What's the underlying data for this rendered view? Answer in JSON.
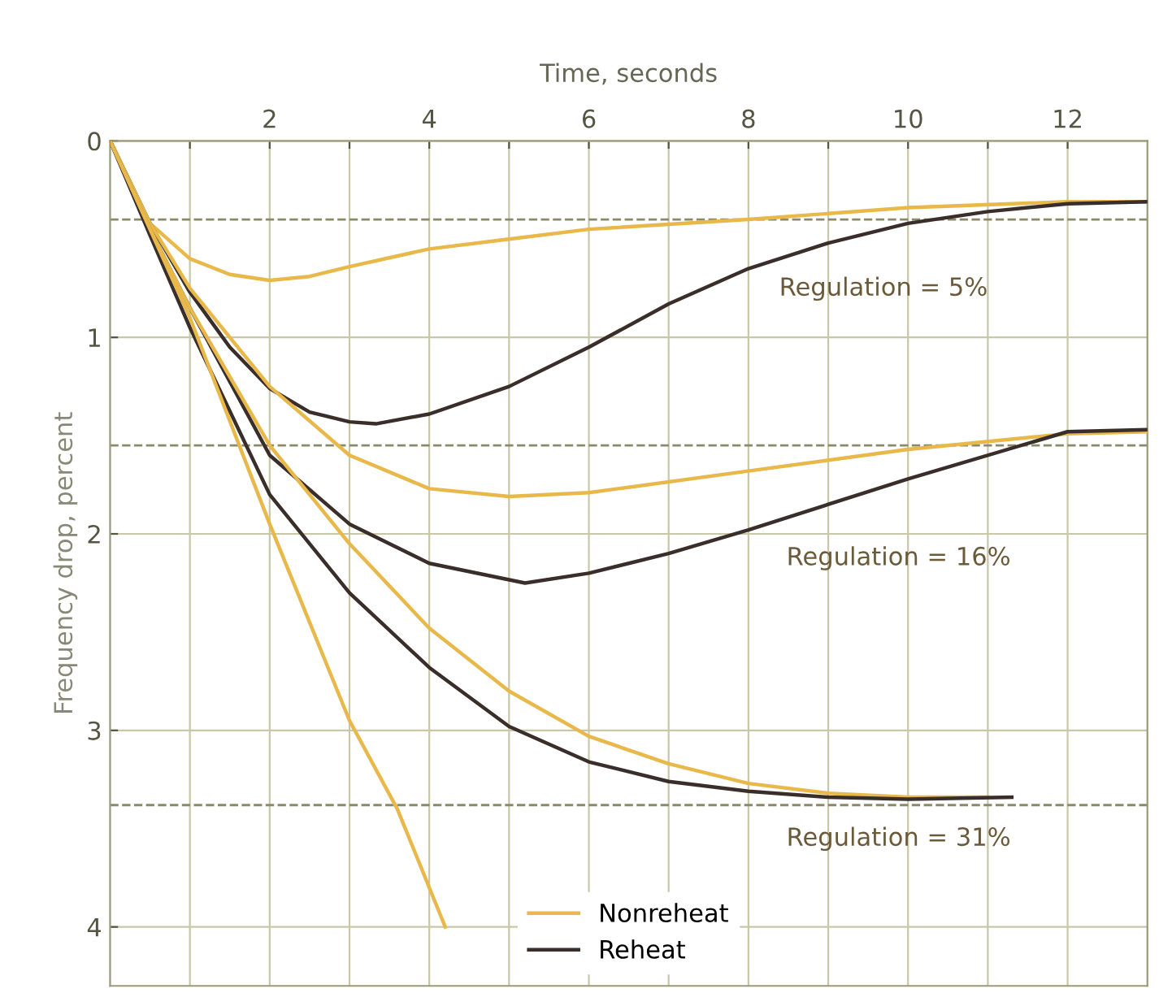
{
  "chart_data": {
    "type": "line",
    "xlabel": "Time, seconds",
    "ylabel": "Frequency drop, percent",
    "xlim": [
      0,
      13
    ],
    "ylim": [
      4.3,
      0
    ],
    "xticks": [
      {
        "value": 1,
        "label": null
      },
      2,
      {
        "value": 3,
        "label": null
      },
      4,
      {
        "value": 5,
        "label": null
      },
      6,
      {
        "value": 7,
        "label": null
      },
      8,
      {
        "value": 9,
        "label": null
      },
      10,
      {
        "value": 11,
        "label": null
      },
      12
    ],
    "yticks": [
      0,
      1,
      2,
      3,
      4
    ],
    "grid": true,
    "legend": "bottom",
    "line_style": "solid",
    "marker": "none",
    "ref_lines": [
      {
        "axis": "y",
        "value": 0.4,
        "line_style": "dashed"
      },
      {
        "axis": "y",
        "value": 1.55,
        "line_style": "dashed"
      },
      {
        "axis": "y",
        "value": 3.38,
        "line_style": "dashed"
      }
    ],
    "annotations": [
      "Regulation = 5%",
      "Regulation = 16%",
      "Regulation = 31%"
    ],
    "series": [
      {
        "name": "Nonreheat",
        "color": "#e8b84a",
        "x": [
          0,
          0.5,
          1,
          1.5,
          2,
          2.5,
          3,
          4,
          5,
          6,
          8,
          10,
          12,
          13
        ],
        "values": [
          0,
          0.42,
          0.6,
          0.68,
          0.71,
          0.69,
          0.64,
          0.55,
          0.5,
          0.45,
          0.4,
          0.34,
          0.31,
          0.31
        ]
      },
      {
        "name": "Reheat",
        "color": "#3a2e2a",
        "x": [
          0,
          0.5,
          1,
          1.5,
          2,
          2.5,
          3,
          3.33,
          4,
          5,
          6,
          7,
          8,
          9,
          10,
          11,
          12,
          13
        ],
        "values": [
          0,
          0.42,
          0.77,
          1.05,
          1.26,
          1.38,
          1.43,
          1.44,
          1.39,
          1.25,
          1.05,
          0.83,
          0.65,
          0.52,
          0.42,
          0.36,
          0.32,
          0.31
        ]
      },
      {
        "color": "#e8b84a",
        "x": [
          0,
          0.5,
          1,
          2,
          3,
          4,
          5,
          6,
          8,
          10,
          12,
          13
        ],
        "values": [
          0,
          0.42,
          0.75,
          1.25,
          1.6,
          1.77,
          1.81,
          1.79,
          1.68,
          1.57,
          1.49,
          1.48
        ]
      },
      {
        "color": "#3a2e2a",
        "x": [
          0,
          0.5,
          1,
          2,
          3,
          4,
          5.2,
          6,
          7,
          8,
          10,
          12,
          13
        ],
        "values": [
          0,
          0.45,
          0.85,
          1.6,
          1.95,
          2.15,
          2.25,
          2.2,
          2.1,
          1.98,
          1.72,
          1.48,
          1.47
        ]
      },
      {
        "color": "#e8b84a",
        "x": [
          0,
          0.5,
          1,
          2,
          3,
          4,
          5,
          6,
          7,
          8,
          9,
          10,
          11
        ],
        "values": [
          0,
          0.45,
          0.85,
          1.55,
          2.05,
          2.48,
          2.8,
          3.03,
          3.17,
          3.27,
          3.32,
          3.34,
          3.34
        ]
      },
      {
        "color": "#3a2e2a",
        "x": [
          0,
          0.5,
          1,
          2,
          3,
          4,
          5,
          6,
          7,
          8,
          9,
          10,
          11.3
        ],
        "values": [
          0,
          0.48,
          0.95,
          1.8,
          2.3,
          2.68,
          2.98,
          3.16,
          3.26,
          3.31,
          3.34,
          3.35,
          3.34
        ]
      },
      {
        "color": "#e8b84a",
        "x": [
          0,
          1,
          2,
          3,
          3.6,
          4.2
        ],
        "values": [
          0,
          0.9,
          1.95,
          2.95,
          3.4,
          4.0
        ]
      }
    ]
  }
}
